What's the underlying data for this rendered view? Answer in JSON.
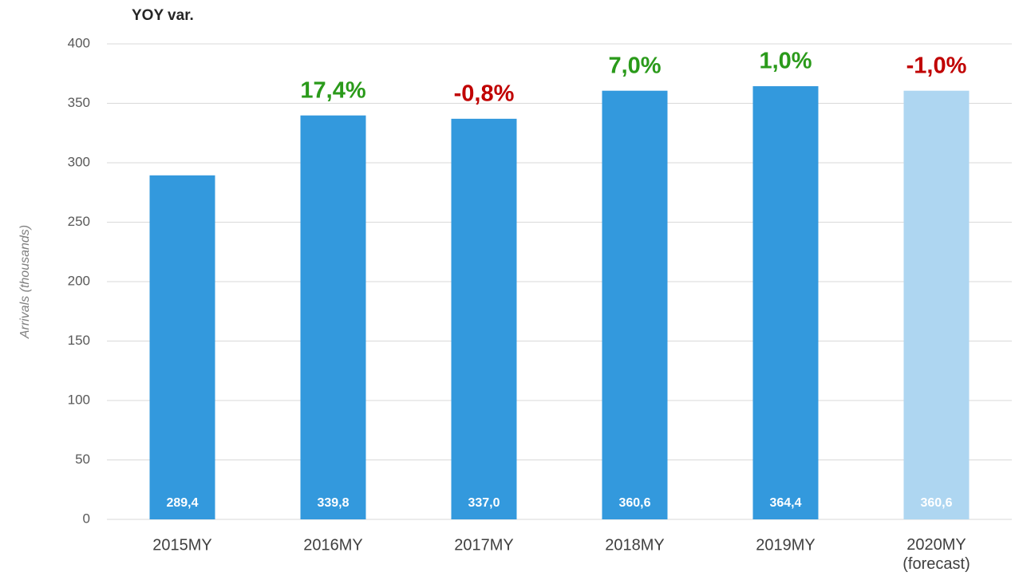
{
  "chart_data": {
    "type": "bar",
    "title": "YOY var.",
    "y_label": "Arrivals (thousands)",
    "categories": [
      "2015MY",
      "2016MY",
      "2017MY",
      "2018MY",
      "2019MY",
      "2020MY\n(forecast)"
    ],
    "values": [
      289.4,
      339.8,
      337.0,
      360.6,
      364.4,
      360.6
    ],
    "value_labels": [
      "289,4",
      "339,8",
      "337,0",
      "360,6",
      "364,4",
      "360,6"
    ],
    "colors": [
      "#3399dd",
      "#3399dd",
      "#3399dd",
      "#3399dd",
      "#3399dd",
      "#aed6f1"
    ],
    "annotations": [
      null,
      "17,4%",
      "-0,8%",
      "7,0%",
      "1,0%",
      "-1,0%"
    ],
    "annotation_colors": [
      null,
      "#2a9a1a",
      "#c00000",
      "#2a9a1a",
      "#2a9a1a",
      "#c00000"
    ],
    "ylim": [
      0,
      400
    ],
    "yticks": [
      0,
      50,
      100,
      150,
      200,
      250,
      300,
      350,
      400
    ],
    "grid": true
  }
}
